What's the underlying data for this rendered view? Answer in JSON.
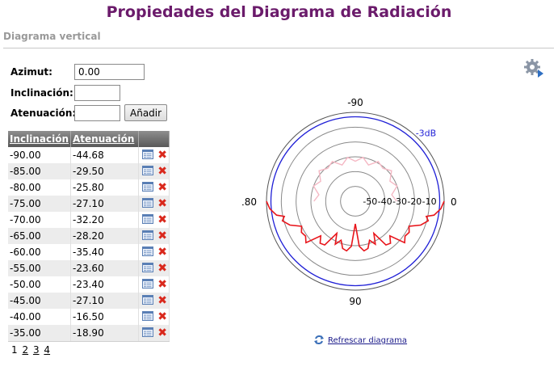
{
  "page": {
    "title": "Propiedades del Diagrama de Radiación",
    "subtitle": "Diagrama vertical"
  },
  "form": {
    "azimut_label": "Azimut:",
    "azimut_value": "0.00",
    "inclinacion_label": "Inclinación:",
    "inclinacion_value": "",
    "atenuacion_label": "Atenuación:",
    "atenuacion_value": "",
    "add_button": "Añadir"
  },
  "table": {
    "headers": [
      "Inclinación",
      "Atenuación"
    ],
    "rows": [
      {
        "inclinacion": "-90.00",
        "atenuacion": "-44.68"
      },
      {
        "inclinacion": "-85.00",
        "atenuacion": "-29.50"
      },
      {
        "inclinacion": "-80.00",
        "atenuacion": "-25.80"
      },
      {
        "inclinacion": "-75.00",
        "atenuacion": "-27.10"
      },
      {
        "inclinacion": "-70.00",
        "atenuacion": "-32.20"
      },
      {
        "inclinacion": "-65.00",
        "atenuacion": "-28.20"
      },
      {
        "inclinacion": "-60.00",
        "atenuacion": "-35.40"
      },
      {
        "inclinacion": "-55.00",
        "atenuacion": "-23.60"
      },
      {
        "inclinacion": "-50.00",
        "atenuacion": "-23.40"
      },
      {
        "inclinacion": "-45.00",
        "atenuacion": "-27.10"
      },
      {
        "inclinacion": "-40.00",
        "atenuacion": "-16.50"
      },
      {
        "inclinacion": "-35.00",
        "atenuacion": "-18.90"
      }
    ],
    "pages": [
      "1",
      "2",
      "3",
      "4"
    ],
    "current_page": "1"
  },
  "icons": {
    "settings": "gear-icon",
    "edit": "edit-icon",
    "delete": "delete-icon",
    "refresh": "refresh-icon"
  },
  "chart_data": {
    "type": "polar",
    "angle_labels": {
      "top": "-90",
      "left": "180",
      "bottom": "90",
      "right": "0"
    },
    "radial_ticks": [
      "-50",
      "-40",
      "-30",
      "-20",
      "-10"
    ],
    "reference_label": "-3dB",
    "r_range": [
      -60,
      0
    ],
    "colors": {
      "main": "#e8151b",
      "back": "#f5b8c4",
      "ref_ring": "#1f1fd6",
      "grid": "#8a8a8a"
    },
    "series": [
      {
        "points": [
          [
            0,
            0
          ],
          [
            5,
            -2
          ],
          [
            10,
            -6
          ],
          [
            12,
            -11
          ],
          [
            15,
            -9
          ],
          [
            20,
            -13
          ],
          [
            25,
            -20
          ],
          [
            30,
            -18
          ],
          [
            35,
            -19
          ],
          [
            40,
            -16.5
          ],
          [
            45,
            -27
          ],
          [
            50,
            -23
          ],
          [
            55,
            -24
          ],
          [
            60,
            -35
          ],
          [
            65,
            -28
          ],
          [
            70,
            -32
          ],
          [
            75,
            -27
          ],
          [
            80,
            -26
          ],
          [
            85,
            -29.5
          ],
          [
            90,
            -44.7
          ],
          [
            95,
            -29.5
          ],
          [
            100,
            -26
          ],
          [
            105,
            -27
          ],
          [
            110,
            -32
          ],
          [
            115,
            -28
          ],
          [
            120,
            -35
          ],
          [
            125,
            -24
          ],
          [
            130,
            -23
          ],
          [
            135,
            -27
          ],
          [
            140,
            -16.5
          ],
          [
            145,
            -19
          ],
          [
            150,
            -18
          ],
          [
            155,
            -20
          ],
          [
            160,
            -13
          ],
          [
            165,
            -9
          ],
          [
            168,
            -11
          ],
          [
            170,
            -6
          ],
          [
            175,
            -2
          ],
          [
            180,
            0
          ]
        ]
      },
      {
        "points": [
          [
            180,
            -32
          ],
          [
            190,
            -35
          ],
          [
            200,
            -30
          ],
          [
            210,
            -33
          ],
          [
            220,
            -28
          ],
          [
            230,
            -31
          ],
          [
            240,
            -29
          ],
          [
            250,
            -34
          ],
          [
            260,
            -30
          ],
          [
            270,
            -33
          ],
          [
            280,
            -30
          ],
          [
            290,
            -34
          ],
          [
            300,
            -29
          ],
          [
            310,
            -31
          ],
          [
            320,
            -28
          ],
          [
            330,
            -33
          ],
          [
            340,
            -30
          ],
          [
            350,
            -35
          ],
          [
            360,
            -32
          ]
        ]
      }
    ]
  },
  "refresh_label": "Refrescar diagrama"
}
